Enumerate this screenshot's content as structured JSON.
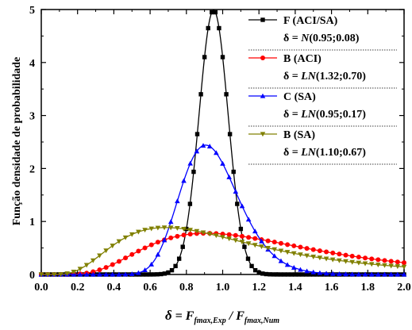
{
  "chart_data": {
    "type": "line",
    "title": "",
    "xlabel_parts": {
      "delta": "δ",
      "eq": " = F",
      "sub1": "fmax,Exp",
      "slash": " / F",
      "sub2": "fmax,Num"
    },
    "ylabel": "Função densidade de probabilidade",
    "xlim": [
      0.0,
      2.0
    ],
    "ylim": [
      0,
      5
    ],
    "x_ticks": [
      "0.0",
      "0.2",
      "0.4",
      "0.6",
      "0.8",
      "1.0",
      "1.2",
      "1.4",
      "1.6",
      "1.8",
      "2.0"
    ],
    "y_ticks": [
      "0",
      "1",
      "2",
      "3",
      "4",
      "5"
    ],
    "legend_position": "top-right",
    "series": [
      {
        "name": "F (ACI/SA)",
        "dist_label": "N(0.95;0.08)",
        "distribution": "normal",
        "params": {
          "mean": 0.95,
          "std": 0.08
        },
        "color": "#000000",
        "marker": "square",
        "n_points": 100
      },
      {
        "name": "B (ACI)",
        "dist_label": "LN(1.32;0.70)",
        "distribution": "lognormal",
        "params": {
          "mean": 1.32,
          "std": 0.7
        },
        "color": "#ff0000",
        "marker": "circle",
        "n_points": 56
      },
      {
        "name": "C (SA)",
        "dist_label": "LN(0.95;0.17)",
        "distribution": "lognormal",
        "params": {
          "mean": 0.95,
          "std": 0.17
        },
        "color": "#0000ff",
        "marker": "triangle-up",
        "n_points": 56
      },
      {
        "name": "B (SA)",
        "dist_label": "LN(1.10;0.67)",
        "distribution": "lognormal",
        "params": {
          "mean": 1.1,
          "std": 0.67
        },
        "color": "#808000",
        "marker": "triangle-down",
        "n_points": 56
      }
    ],
    "legend_rows": [
      {
        "name": "F (ACI/SA)",
        "dist_prefix": "δ = ",
        "dist_fn": "N",
        "dist_args": "(0.95;0.08)"
      },
      {
        "name": "B (ACI)",
        "dist_prefix": "δ = ",
        "dist_fn": "LN",
        "dist_args": "(1.32;0.70)"
      },
      {
        "name": "C (SA)",
        "dist_prefix": "δ = ",
        "dist_fn": "LN",
        "dist_args": "(0.95;0.17)"
      },
      {
        "name": "B (SA)",
        "dist_prefix": "δ = ",
        "dist_fn": "LN",
        "dist_args": "(1.10;0.67)"
      }
    ]
  }
}
